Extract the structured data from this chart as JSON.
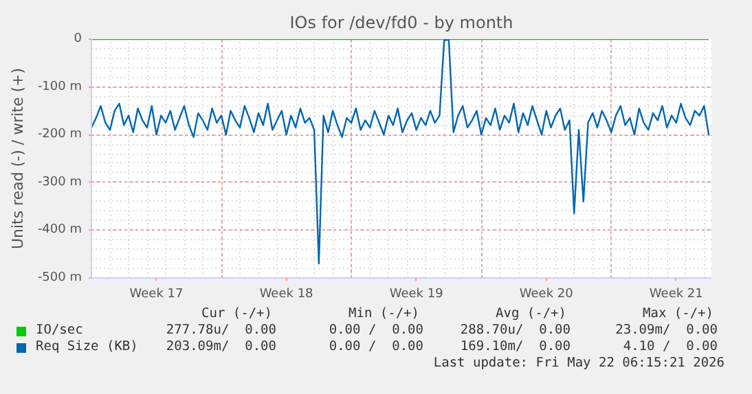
{
  "chart_data": {
    "type": "line",
    "title": "IOs for /dev/fd0 - by month",
    "ylabel": "Units read (-) / write (+)",
    "xlim": [
      "2026-04-20T00:00",
      "2026-05-23T09:30"
    ],
    "ylim": [
      -500,
      0
    ],
    "xticks": [
      {
        "value": "2026-04-23T12:00",
        "label": "Week 17"
      },
      {
        "value": "2026-04-27",
        "label": null
      },
      {
        "value": "2026-04-30T12:00",
        "label": "Week 18"
      },
      {
        "value": "2026-05-04",
        "label": null
      },
      {
        "value": "2026-05-07T12:00",
        "label": "Week 19"
      },
      {
        "value": "2026-05-11",
        "label": null
      },
      {
        "value": "2026-05-14T12:00",
        "label": "Week 20"
      },
      {
        "value": "2026-05-18",
        "label": null
      },
      {
        "value": "2026-05-21T12:00",
        "label": "Week 21"
      }
    ],
    "yticks": [
      {
        "value": -500,
        "label": "-500 m"
      },
      {
        "value": -400,
        "label": "-400 m"
      },
      {
        "value": -300,
        "label": "-300 m"
      },
      {
        "value": -200,
        "label": "-200 m"
      },
      {
        "value": -100,
        "label": "-100 m"
      },
      0
    ],
    "grid": true,
    "legend": "bottom",
    "series": [
      {
        "name": "IO/sec",
        "color": "#00cc00",
        "x": [
          "2026-04-20T00:00",
          "2026-05-23T06:00"
        ],
        "values": [
          0,
          0
        ]
      },
      {
        "name": "Req Size (KB)",
        "color": "#0066b3",
        "x": [
          "2026-04-20T00:00",
          "2026-04-20T06:00",
          "2026-04-20T12:00",
          "2026-04-20T18:00",
          "2026-04-21T00:00",
          "2026-04-21T06:00",
          "2026-04-21T12:00",
          "2026-04-21T18:00",
          "2026-04-22T00:00",
          "2026-04-22T06:00",
          "2026-04-22T12:00",
          "2026-04-22T18:00",
          "2026-04-23T00:00",
          "2026-04-23T06:00",
          "2026-04-23T12:00",
          "2026-04-23T18:00",
          "2026-04-24T00:00",
          "2026-04-24T06:00",
          "2026-04-24T12:00",
          "2026-04-24T18:00",
          "2026-04-25T00:00",
          "2026-04-25T06:00",
          "2026-04-25T12:00",
          "2026-04-25T18:00",
          "2026-04-26T00:00",
          "2026-04-26T06:00",
          "2026-04-26T12:00",
          "2026-04-26T18:00",
          "2026-04-27T00:00",
          "2026-04-27T06:00",
          "2026-04-27T12:00",
          "2026-04-27T18:00",
          "2026-04-28T00:00",
          "2026-04-28T06:00",
          "2026-04-28T12:00",
          "2026-04-28T18:00",
          "2026-04-29T00:00",
          "2026-04-29T06:00",
          "2026-04-29T12:00",
          "2026-04-29T18:00",
          "2026-04-30T00:00",
          "2026-04-30T06:00",
          "2026-04-30T12:00",
          "2026-04-30T18:00",
          "2026-05-01T00:00",
          "2026-05-01T06:00",
          "2026-05-01T12:00",
          "2026-05-01T18:00",
          "2026-05-02T00:00",
          "2026-05-02T06:00",
          "2026-05-02T12:00",
          "2026-05-02T18:00",
          "2026-05-03T00:00",
          "2026-05-03T06:00",
          "2026-05-03T12:00",
          "2026-05-03T18:00",
          "2026-05-04T00:00",
          "2026-05-04T06:00",
          "2026-05-04T12:00",
          "2026-05-04T18:00",
          "2026-05-05T00:00",
          "2026-05-05T06:00",
          "2026-05-05T12:00",
          "2026-05-05T18:00",
          "2026-05-06T00:00",
          "2026-05-06T06:00",
          "2026-05-06T12:00",
          "2026-05-06T18:00",
          "2026-05-07T00:00",
          "2026-05-07T06:00",
          "2026-05-07T12:00",
          "2026-05-07T18:00",
          "2026-05-08T00:00",
          "2026-05-08T06:00",
          "2026-05-08T12:00",
          "2026-05-08T18:00",
          "2026-05-09T00:00",
          "2026-05-09T06:00",
          "2026-05-09T12:00",
          "2026-05-09T18:00",
          "2026-05-10T00:00",
          "2026-05-10T06:00",
          "2026-05-10T12:00",
          "2026-05-10T18:00",
          "2026-05-11T00:00",
          "2026-05-11T06:00",
          "2026-05-11T12:00",
          "2026-05-11T18:00",
          "2026-05-12T00:00",
          "2026-05-12T06:00",
          "2026-05-12T12:00",
          "2026-05-12T18:00",
          "2026-05-13T00:00",
          "2026-05-13T06:00",
          "2026-05-13T12:00",
          "2026-05-13T18:00",
          "2026-05-14T00:00",
          "2026-05-14T06:00",
          "2026-05-14T12:00",
          "2026-05-14T18:00",
          "2026-05-15T00:00",
          "2026-05-15T06:00",
          "2026-05-15T12:00",
          "2026-05-15T18:00",
          "2026-05-16T00:00",
          "2026-05-16T06:00",
          "2026-05-16T12:00",
          "2026-05-16T18:00",
          "2026-05-17T00:00",
          "2026-05-17T06:00",
          "2026-05-17T12:00",
          "2026-05-17T18:00",
          "2026-05-18T00:00",
          "2026-05-18T06:00",
          "2026-05-18T12:00",
          "2026-05-18T18:00",
          "2026-05-19T00:00",
          "2026-05-19T06:00",
          "2026-05-19T12:00",
          "2026-05-19T18:00",
          "2026-05-20T00:00",
          "2026-05-20T06:00",
          "2026-05-20T12:00",
          "2026-05-20T18:00",
          "2026-05-21T00:00",
          "2026-05-21T06:00",
          "2026-05-21T12:00",
          "2026-05-21T18:00",
          "2026-05-22T00:00",
          "2026-05-22T06:00",
          "2026-05-22T12:00",
          "2026-05-22T18:00",
          "2026-05-23T00:00",
          "2026-05-23T06:00"
        ],
        "values": [
          -185,
          -165,
          -140,
          -175,
          -190,
          -150,
          -135,
          -180,
          -160,
          -195,
          -145,
          -170,
          -185,
          -140,
          -200,
          -160,
          -175,
          -150,
          -190,
          -165,
          -140,
          -180,
          -205,
          -155,
          -170,
          -190,
          -145,
          -175,
          -160,
          -200,
          -150,
          -170,
          -185,
          -140,
          -165,
          -195,
          -155,
          -180,
          -135,
          -190,
          -170,
          -150,
          -200,
          -160,
          -185,
          -145,
          -175,
          -165,
          -190,
          -470,
          -160,
          -195,
          -150,
          -180,
          -205,
          -165,
          -175,
          -145,
          -190,
          -170,
          -185,
          -150,
          -175,
          -200,
          -160,
          -180,
          -145,
          -195,
          -170,
          -155,
          -190,
          -165,
          -180,
          -150,
          -175,
          -160,
          -2,
          -2,
          -195,
          -160,
          -140,
          -185,
          -170,
          -150,
          -200,
          -165,
          -180,
          -145,
          -190,
          -160,
          -175,
          -135,
          -195,
          -155,
          -180,
          -140,
          -170,
          -200,
          -150,
          -185,
          -160,
          -145,
          -190,
          -170,
          -365,
          -190,
          -340,
          -175,
          -155,
          -185,
          -150,
          -170,
          -195,
          -160,
          -140,
          -180,
          -165,
          -200,
          -145,
          -175,
          -190,
          -155,
          -170,
          -140,
          -185,
          -160,
          -175,
          -135,
          -165,
          -180,
          -150,
          -160,
          -140,
          -200
        ]
      }
    ],
    "annotations": [
      "Cur (-/+)",
      "Min (-/+)",
      "Avg (-/+)",
      "Max (-/+)",
      "277.78u/  0.00",
      "0.00 /  0.00",
      "288.70u/  0.00",
      "23.09m/  0.00",
      "203.09m/  0.00",
      "0.00 /  0.00",
      "169.10m/  0.00",
      "4.10 /  0.00",
      "Last update: Fri May 22 06:15:21 2026"
    ]
  }
}
